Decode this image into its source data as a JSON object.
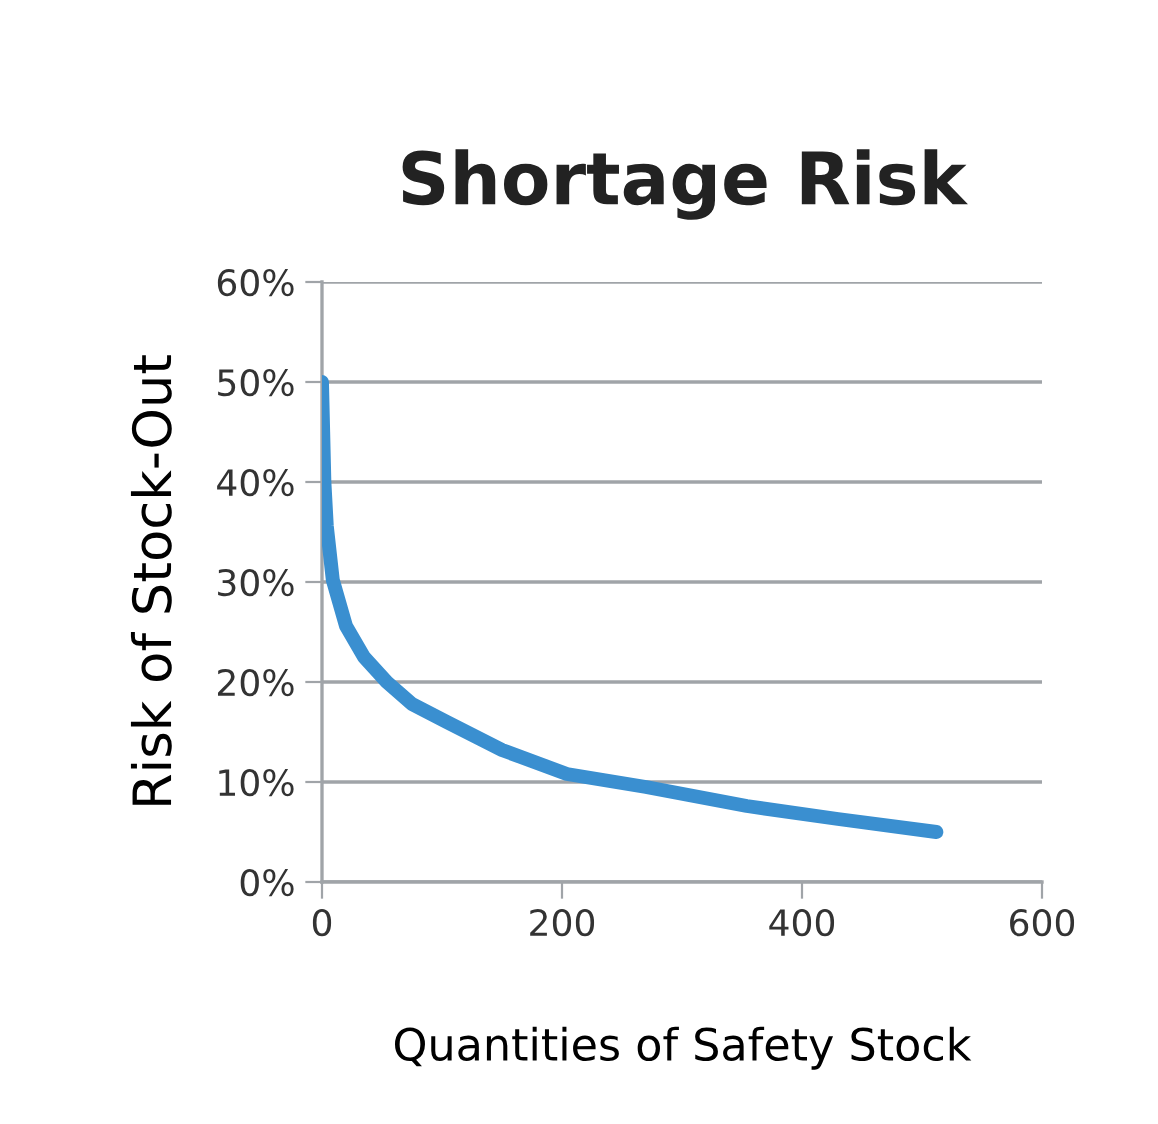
{
  "chart_data": {
    "type": "line",
    "title": "Shortage Risk",
    "xlabel": "Quantities of Safety Stock",
    "ylabel": "Risk of Stock-Out",
    "series": [
      {
        "color": "#3a8fd0",
        "x": [
          0,
          1,
          2,
          4,
          9,
          20,
          35,
          54,
          75,
          104,
          150,
          204,
          270,
          354,
          430,
          512
        ],
        "values": [
          50,
          45,
          40,
          35.6,
          30.2,
          25.6,
          22.5,
          20,
          17.8,
          16,
          13.2,
          10.8,
          9.5,
          7.6,
          6.3,
          5
        ]
      }
    ],
    "xlim": [
      0,
      600
    ],
    "xticks": [
      0,
      200,
      400,
      600
    ],
    "ylim": [
      0,
      60
    ],
    "yticks": [
      {
        "value": 0,
        "label": "0%"
      },
      {
        "value": 10,
        "label": "10%"
      },
      {
        "value": 20,
        "label": "20%"
      },
      {
        "value": 30,
        "label": "30%"
      },
      {
        "value": 40,
        "label": "40%"
      },
      {
        "value": 50,
        "label": "50%"
      },
      {
        "value": 60,
        "label": "60%"
      }
    ],
    "grid": "y",
    "marker": "none",
    "line_style": "solid"
  }
}
